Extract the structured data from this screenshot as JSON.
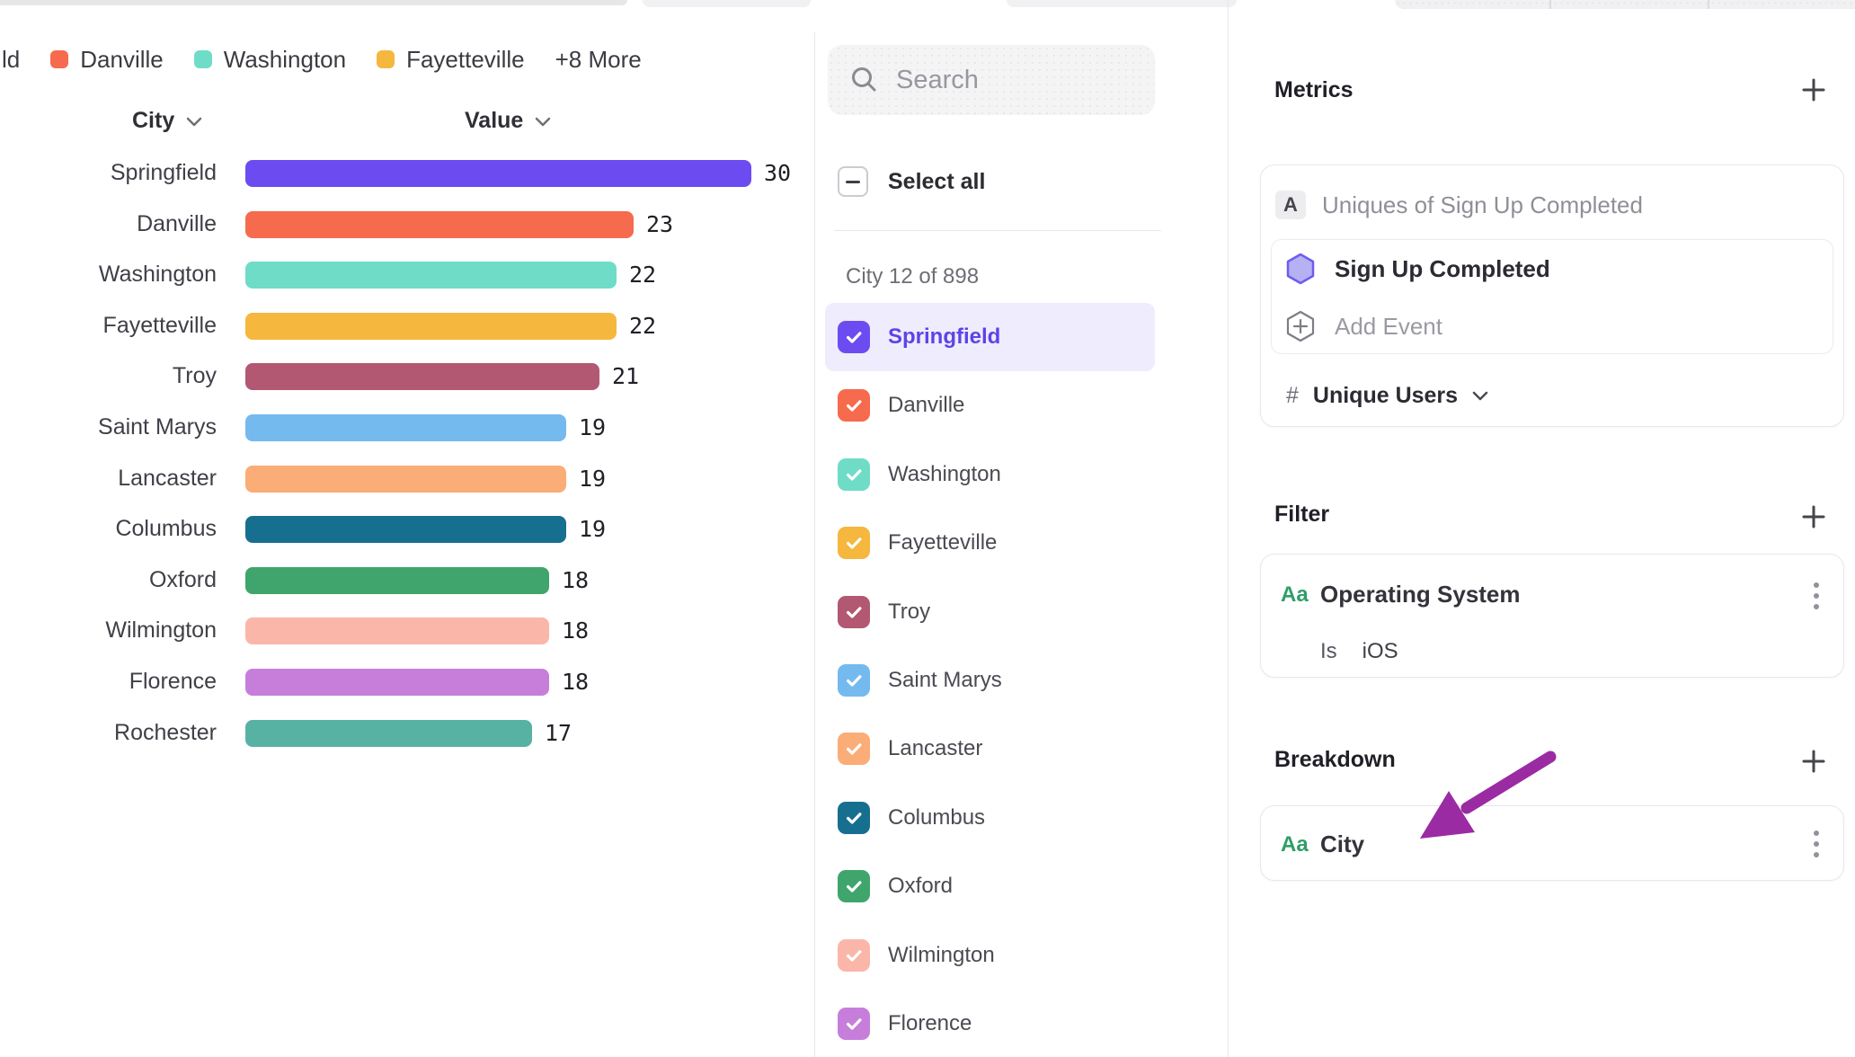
{
  "chart": {
    "legend": {
      "clipped_label": "ld",
      "items": [
        {
          "label": "Danville",
          "color": "#f66a4d"
        },
        {
          "label": "Washington",
          "color": "#6fdcc7"
        },
        {
          "label": "Fayetteville",
          "color": "#f5b73d"
        }
      ],
      "more_label": "+8 More"
    },
    "header": {
      "city": "City",
      "value": "Value"
    }
  },
  "chart_data": {
    "type": "bar",
    "orientation": "horizontal",
    "title": "",
    "category_label": "City",
    "value_label": "Value",
    "categories": [
      "Springfield",
      "Danville",
      "Washington",
      "Fayetteville",
      "Troy",
      "Saint Marys",
      "Lancaster",
      "Columbus",
      "Oxford",
      "Wilmington",
      "Florence",
      "Rochester"
    ],
    "values": [
      30,
      23,
      22,
      22,
      21,
      19,
      19,
      19,
      18,
      18,
      18,
      17
    ],
    "colors": [
      "#6c4cf1",
      "#f66a4d",
      "#6fdcc7",
      "#f5b73d",
      "#b25873",
      "#74baef",
      "#fbad77",
      "#176f90",
      "#3fa56c",
      "#fbb6aa",
      "#c77edb",
      "#58b2a3"
    ],
    "xlim": [
      0,
      32
    ],
    "data_labels": true,
    "grid": false,
    "legend_position": "top"
  },
  "list": {
    "search_placeholder": "Search",
    "select_all_label": "Select all",
    "select_all_state": "indeterminate",
    "count_label": "City 12 of 898",
    "items": [
      {
        "label": "Springfield",
        "color": "#6c4cf1",
        "checked": true,
        "selected": true
      },
      {
        "label": "Danville",
        "color": "#f66a4d",
        "checked": true,
        "selected": false
      },
      {
        "label": "Washington",
        "color": "#6fdcc7",
        "checked": true,
        "selected": false
      },
      {
        "label": "Fayetteville",
        "color": "#f5b73d",
        "checked": true,
        "selected": false
      },
      {
        "label": "Troy",
        "color": "#b25873",
        "checked": true,
        "selected": false
      },
      {
        "label": "Saint Marys",
        "color": "#74baef",
        "checked": true,
        "selected": false
      },
      {
        "label": "Lancaster",
        "color": "#fbad77",
        "checked": true,
        "selected": false
      },
      {
        "label": "Columbus",
        "color": "#176f90",
        "checked": true,
        "selected": false
      },
      {
        "label": "Oxford",
        "color": "#3fa56c",
        "checked": true,
        "selected": false
      },
      {
        "label": "Wilmington",
        "color": "#fbb6aa",
        "checked": true,
        "selected": false
      },
      {
        "label": "Florence",
        "color": "#c77edb",
        "checked": true,
        "selected": false
      }
    ]
  },
  "panel": {
    "metrics": {
      "title": "Metrics",
      "badge": "A",
      "metric_label": "Uniques of Sign Up Completed",
      "event_name": "Sign Up Completed",
      "add_event_label": "Add Event",
      "measure_prefix": "#",
      "measure": "Unique Users"
    },
    "filter": {
      "title": "Filter",
      "property_badge": "Aa",
      "property": "Operating System",
      "operator": "Is",
      "value": "iOS"
    },
    "breakdown": {
      "title": "Breakdown",
      "property_badge": "Aa",
      "property": "City",
      "annotation_arrow_color": "#9b2ba3"
    }
  }
}
